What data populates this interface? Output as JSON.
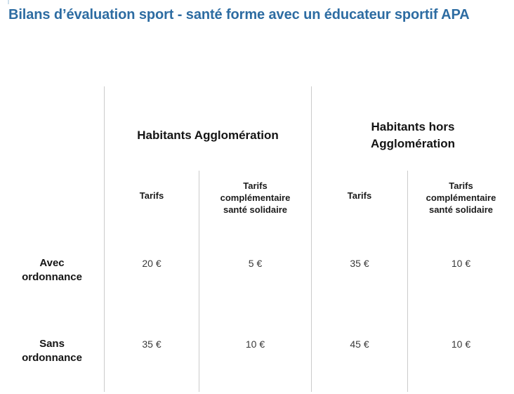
{
  "page": {
    "title": "Bilans d’évaluation sport - santé forme avec un éducateur sportif APA"
  },
  "colors": {
    "title_blue": "#2d6ca2",
    "grid_line": "#cbcbcb",
    "text_dark": "#141414"
  },
  "table": {
    "group_headers": [
      {
        "label": "Habitants Agglomération"
      },
      {
        "label": "Habitants hors Agglomération"
      }
    ],
    "sub_headers": {
      "tarifs": "Tarifs",
      "tarifs_complementaire": "Tarifs complémentaire santé solidaire"
    },
    "rows": [
      {
        "label": "Avec ordonnance",
        "values": [
          "20 €",
          "5 €",
          "35 €",
          "10 €"
        ]
      },
      {
        "label": "Sans ordonnance",
        "values": [
          "35 €",
          "10 €",
          "45 €",
          "10 €"
        ]
      }
    ]
  }
}
